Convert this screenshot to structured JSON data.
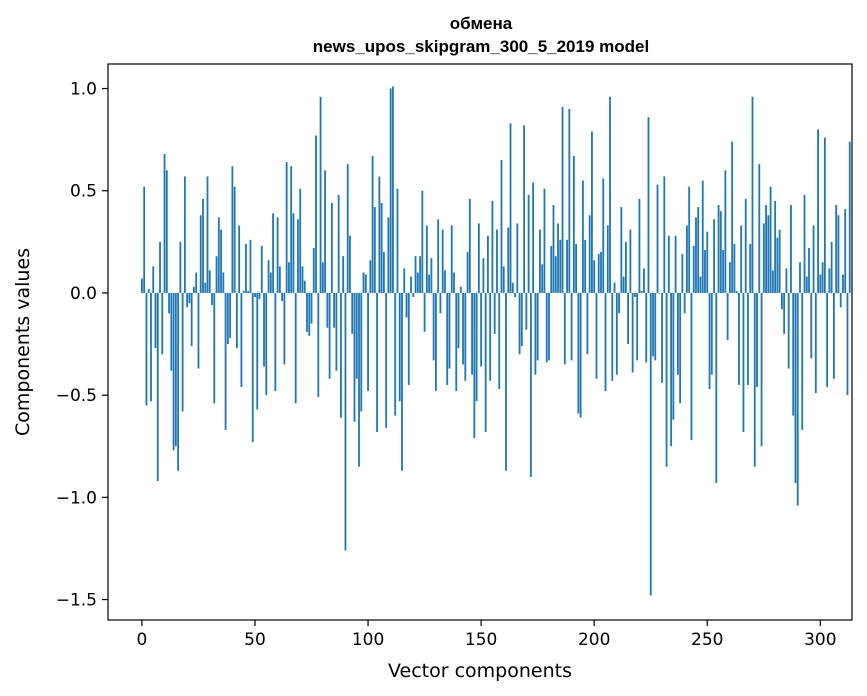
{
  "chart_data": {
    "type": "bar",
    "title_line1": "обмена",
    "title_line2": "news_upos_skipgram_300_5_2019 model",
    "xlabel": "Vector components",
    "ylabel": "Components values",
    "xlim": [
      -15,
      314
    ],
    "ylim": [
      -1.6,
      1.12
    ],
    "xticks": [
      0,
      50,
      100,
      150,
      200,
      250,
      300
    ],
    "xtick_labels": [
      "0",
      "50",
      "100",
      "150",
      "200",
      "250",
      "300"
    ],
    "yticks": [
      1.0,
      0.5,
      0.0,
      -0.5,
      -1.0,
      -1.5
    ],
    "ytick_labels": [
      "1.0",
      "0.5",
      "0.0",
      "−0.5",
      "−1.0",
      "−1.5"
    ],
    "bar_color": "#1f77b4",
    "values": [
      0.07,
      0.52,
      -0.55,
      0.02,
      -0.53,
      0.13,
      -0.27,
      -0.92,
      0.25,
      -0.3,
      0.68,
      0.6,
      -0.1,
      -0.38,
      -0.77,
      -0.75,
      -0.87,
      0.25,
      -0.58,
      0.57,
      -0.07,
      -0.05,
      -0.26,
      0.03,
      0.1,
      -0.37,
      0.38,
      0.46,
      0.05,
      0.57,
      0.11,
      -0.06,
      -0.54,
      0.18,
      0.37,
      0.31,
      0.1,
      -0.67,
      -0.25,
      -0.22,
      0.62,
      0.52,
      -0.27,
      0.33,
      -0.46,
      0.01,
      0.24,
      0.01,
      0.26,
      -0.73,
      -0.02,
      -0.57,
      -0.03,
      0.23,
      -0.36,
      -0.5,
      0.16,
      0.1,
      0.39,
      -0.48,
      0.37,
      0.13,
      -0.04,
      -0.35,
      0.64,
      0.15,
      0.62,
      0.39,
      -0.54,
      0.36,
      0.51,
      0.13,
      0.06,
      -0.19,
      -0.21,
      -0.15,
      0.22,
      0.77,
      -0.51,
      0.96,
      0.15,
      0.6,
      -0.17,
      -0.42,
      0.44,
      -0.17,
      -0.38,
      0.48,
      -0.61,
      0.18,
      -1.26,
      0.63,
      0.28,
      -0.2,
      -0.63,
      -0.42,
      -0.85,
      -0.58,
      0.1,
      0.09,
      -0.48,
      0.16,
      0.67,
      0.42,
      -0.68,
      0.57,
      0.44,
      0.2,
      -0.66,
      0.37,
      1.0,
      1.01,
      -0.6,
      0.51,
      -0.53,
      -0.87,
      0.12,
      -0.12,
      -0.45,
      0.08,
      -0.02,
      0.18,
      0.1,
      0.18,
      0.5,
      -0.19,
      0.33,
      0.09,
      0.17,
      -0.33,
      -0.48,
      0.36,
      -0.1,
      0.31,
      0.11,
      -0.45,
      -0.37,
      0.33,
      0.1,
      -0.48,
      -0.27,
      0.03,
      -0.35,
      -0.43,
      0.2,
      0.46,
      -0.4,
      -0.71,
      -0.53,
      0.34,
      -0.36,
      0.17,
      -0.68,
      0.28,
      -0.43,
      0.45,
      -0.2,
      0.31,
      -0.47,
      0.65,
      0.13,
      -0.87,
      0.32,
      0.83,
      0.05,
      -0.02,
      0.34,
      -0.3,
      -0.26,
      0.82,
      -0.18,
      0.48,
      -0.9,
      0.54,
      -0.4,
      -0.33,
      0.31,
      0.14,
      0.51,
      -0.34,
      -0.33,
      0.23,
      0.43,
      0.18,
      0.34,
      0.26,
      0.91,
      -0.35,
      0.26,
      0.9,
      -0.33,
      0.67,
      0.24,
      -0.59,
      -0.61,
      0.55,
      0.26,
      -0.3,
      0.38,
      0.79,
      0.16,
      -0.42,
      0.19,
      0.2,
      0.56,
      -0.48,
      0.33,
      0.96,
      -0.43,
      0.05,
      -0.4,
      -0.1,
      0.42,
      0.08,
      0.25,
      -0.25,
      0.31,
      -0.39,
      -0.02,
      -0.33,
      0.46,
      0.01,
      0.12,
      -0.34,
      0.86,
      -1.48,
      -0.31,
      -0.33,
      0.53,
      0.0,
      -0.44,
      0.57,
      -0.85,
      0.28,
      -0.75,
      -0.62,
      0.28,
      -0.4,
      -0.54,
      0.19,
      -0.1,
      0.33,
      0.52,
      -0.72,
      0.23,
      0.37,
      0.42,
      0.08,
      0.55,
      0.21,
      0.3,
      -0.47,
      -0.4,
      0.36,
      -0.93,
      0.43,
      0.4,
      0.21,
      0.6,
      -0.23,
      0.15,
      0.74,
      0.24,
      0.01,
      -0.45,
      0.33,
      -0.68,
      0.46,
      -0.45,
      0.24,
      0.96,
      -0.85,
      -0.46,
      0.63,
      -0.75,
      0.34,
      0.43,
      0.38,
      0.52,
      0.11,
      0.45,
      0.27,
      0.31,
      -0.08,
      -0.2,
      0.12,
      -0.37,
      0.43,
      -0.6,
      -0.93,
      -1.04,
      0.15,
      -0.67,
      0.48,
      0.08,
      0.22,
      -0.32,
      0.33,
      -0.49,
      0.8,
      0.09,
      0.15,
      0.76,
      -0.46,
      0.12,
      0.25,
      -0.42,
      0.43,
      0.38,
      -0.07,
      0.09,
      0.41,
      -0.5,
      0.74
    ]
  }
}
